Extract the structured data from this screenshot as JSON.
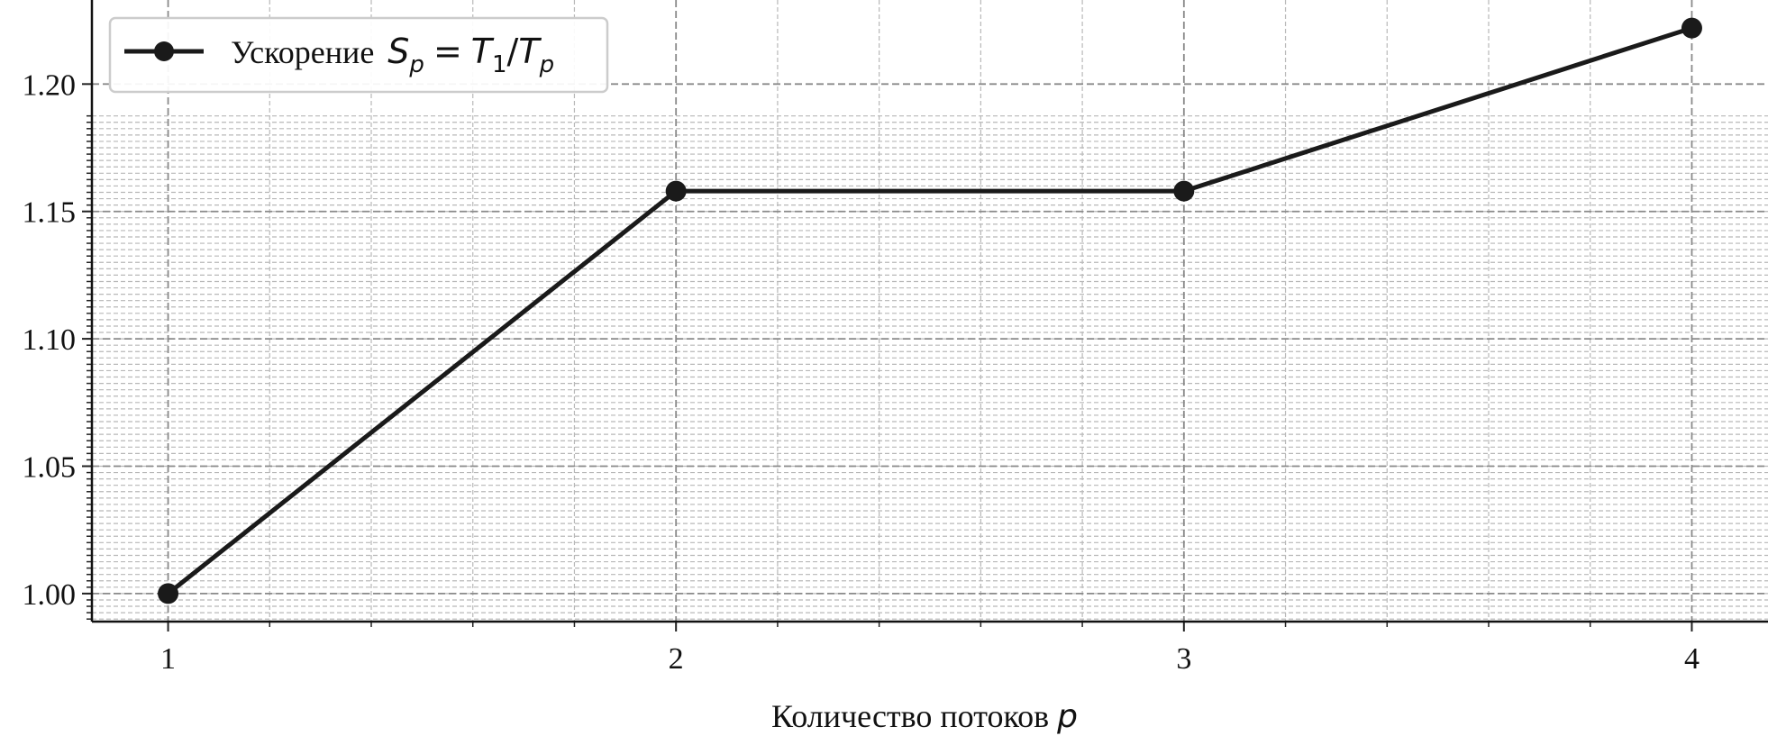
{
  "chart_data": {
    "type": "line",
    "x": [
      1,
      2,
      3,
      4
    ],
    "series": [
      {
        "name": "Ускорение S_p = T_1/T_p",
        "values": [
          1.0,
          1.158,
          1.158,
          1.222
        ]
      }
    ],
    "xlabel": "Количество потоков",
    "xlabel_symbol": "p",
    "ylabel": "",
    "xlim": [
      0.85,
      4.15
    ],
    "ylim": [
      0.989,
      1.233
    ],
    "x_ticks": [
      "1",
      "2",
      "3",
      "4"
    ],
    "y_ticks": [
      "1.00",
      "1.05",
      "1.10",
      "1.15",
      "1.20"
    ],
    "grid": true,
    "minor_grid": true,
    "legend_position": "top-left",
    "legend": {
      "prefix": "Ускорение",
      "S": "S",
      "sub_p": "p",
      "eq": "=",
      "T": "T",
      "sub_1": "1",
      "slash": "/",
      "sub_p2": "p"
    },
    "colors": {
      "line": "#1a1a1a",
      "marker": "#1a1a1a",
      "grid_major": "#8a8a8a",
      "grid_minor": "#b8b8b8"
    }
  }
}
